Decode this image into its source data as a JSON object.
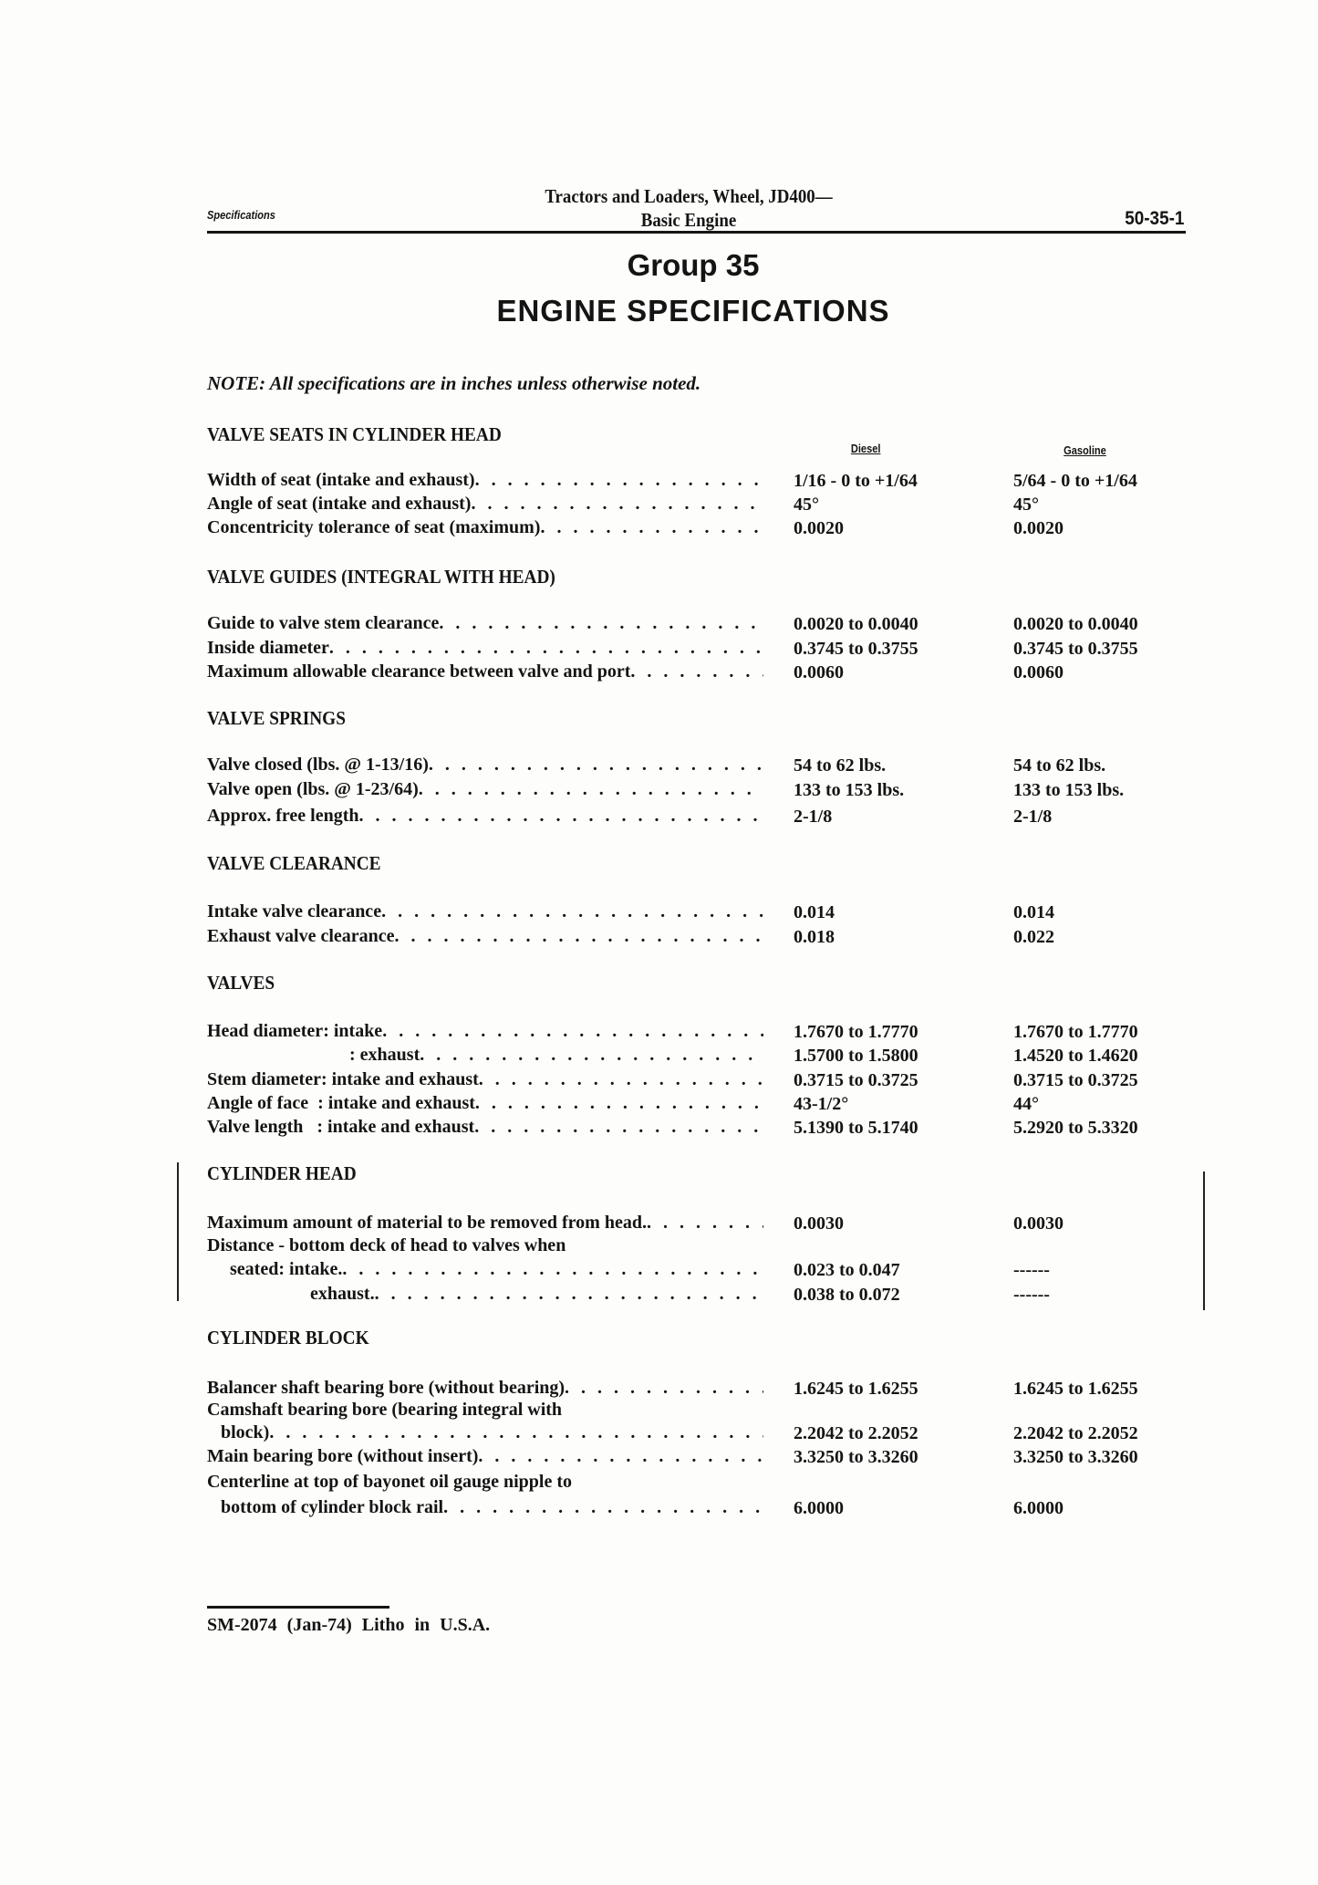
{
  "header": {
    "section_label": "Specifications",
    "title_line1": "Tractors and Loaders, Wheel, JD400—",
    "title_line2": "Basic Engine",
    "page_number": "50-35-1"
  },
  "group": "Group 35",
  "title": "ENGINE SPECIFICATIONS",
  "note": "NOTE: All specifications are in inches unless otherwise noted.",
  "columns": {
    "diesel": "Diesel",
    "gasoline": "Gasoline"
  },
  "sections": [
    {
      "heading": "VALVE SEATS IN CYLINDER HEAD",
      "rows": [
        {
          "label": "Width of seat (intake and exhaust)",
          "diesel": "1/16 - 0 to +1/64",
          "gasoline": "5/64 - 0 to +1/64"
        },
        {
          "label": "Angle of seat (intake and exhaust)",
          "diesel": "45°",
          "gasoline": "45°"
        },
        {
          "label": "Concentricity tolerance of seat (maximum)",
          "diesel": "0.0020",
          "gasoline": "0.0020"
        }
      ]
    },
    {
      "heading": "VALVE GUIDES (INTEGRAL WITH HEAD)",
      "rows": [
        {
          "label": "Guide to valve stem clearance",
          "diesel": "0.0020 to 0.0040",
          "gasoline": "0.0020 to 0.0040"
        },
        {
          "label": "Inside diameter",
          "diesel": "0.3745 to 0.3755",
          "gasoline": "0.3745 to 0.3755"
        },
        {
          "label": "Maximum allowable clearance between valve and port",
          "diesel": "0.0060",
          "gasoline": "0.0060"
        }
      ]
    },
    {
      "heading": "VALVE SPRINGS",
      "rows": [
        {
          "label": "Valve closed (lbs. @ 1-13/16)",
          "diesel": "54 to 62 lbs.",
          "gasoline": "54 to 62 lbs."
        },
        {
          "label": "Valve open (lbs. @ 1-23/64)",
          "diesel": "133 to 153 lbs.",
          "gasoline": "133 to 153 lbs."
        },
        {
          "label": "Approx. free length",
          "diesel": "2-1/8",
          "gasoline": "2-1/8"
        }
      ]
    },
    {
      "heading": "VALVE CLEARANCE",
      "rows": [
        {
          "label": "Intake valve clearance",
          "diesel": "0.014",
          "gasoline": "0.014"
        },
        {
          "label": "Exhaust valve clearance",
          "diesel": "0.018",
          "gasoline": "0.022"
        }
      ]
    },
    {
      "heading": "VALVES",
      "rows": [
        {
          "label": "Head diameter: intake",
          "diesel": "1.7670 to 1.7770",
          "gasoline": "1.7670 to 1.7770"
        },
        {
          "label": ": exhaust",
          "diesel": "1.5700 to 1.5800",
          "gasoline": "1.4520 to 1.4620"
        },
        {
          "label": "Stem diameter: intake and exhaust",
          "diesel": "0.3715 to 0.3725",
          "gasoline": "0.3715 to 0.3725"
        },
        {
          "label": "Angle of face  : intake and exhaust",
          "diesel": "43-1/2°",
          "gasoline": "44°"
        },
        {
          "label": "Valve length   : intake and exhaust",
          "diesel": "5.1390 to 5.1740",
          "gasoline": "5.2920 to 5.3320"
        }
      ]
    },
    {
      "heading": "CYLINDER HEAD",
      "rows": [
        {
          "label": "Maximum amount of material to be removed from head.",
          "diesel": "0.0030",
          "gasoline": "0.0030"
        },
        {
          "label": "Distance - bottom deck of head to valves when"
        },
        {
          "label": "seated: intake.",
          "diesel": "0.023 to 0.047",
          "gasoline": "------"
        },
        {
          "label": "exhaust.",
          "diesel": "0.038 to 0.072",
          "gasoline": "------"
        }
      ]
    },
    {
      "heading": "CYLINDER BLOCK",
      "rows": [
        {
          "label": "Balancer shaft bearing bore (without bearing)",
          "diesel": "1.6245 to 1.6255",
          "gasoline": "1.6245 to 1.6255"
        },
        {
          "label": "Camshaft bearing bore (bearing integral with"
        },
        {
          "label": "block)",
          "diesel": "2.2042 to 2.2052",
          "gasoline": "2.2042 to 2.2052"
        },
        {
          "label": "Main bearing bore (without insert)",
          "diesel": "3.3250 to 3.3260",
          "gasoline": "3.3250 to 3.3260"
        },
        {
          "label": "Centerline at top of bayonet oil gauge nipple to"
        },
        {
          "label": "bottom of cylinder block rail",
          "diesel": "6.0000",
          "gasoline": "6.0000"
        }
      ]
    }
  ],
  "footer": "SM-2074  (Jan-74)  Litho in U.S.A."
}
